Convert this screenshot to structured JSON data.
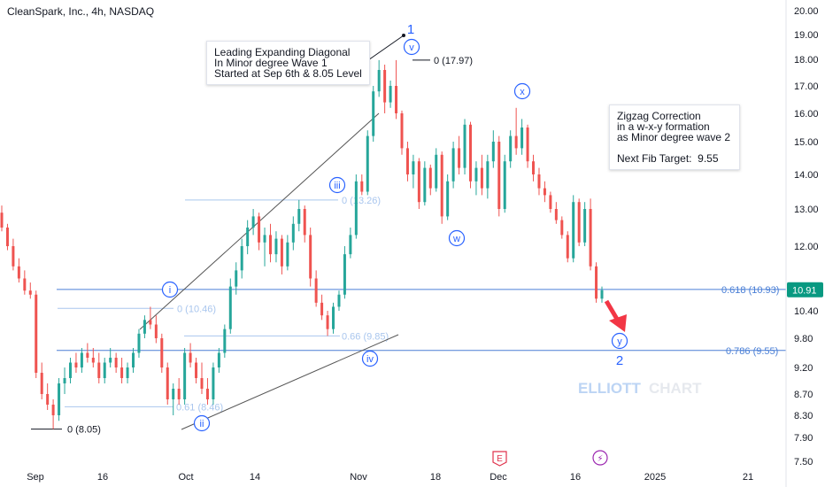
{
  "chart_data": {
    "type": "candlestick",
    "title": "CleanSpark, Inc., 4h, NASDAQ",
    "ylim": [
      7.5,
      20.0
    ],
    "y_ticks": [
      "20.00",
      "19.00",
      "18.00",
      "17.00",
      "16.00",
      "15.00",
      "14.00",
      "13.00",
      "12.00",
      "10.40",
      "9.80",
      "9.20",
      "8.70",
      "8.30",
      "7.90",
      "7.50"
    ],
    "x_ticks": [
      "Sep",
      "16",
      "Oct",
      "14",
      "Nov",
      "18",
      "Dec",
      "16",
      "2025",
      "21"
    ],
    "last_price": "10.91",
    "candles": [
      {
        "o": 12.9,
        "h": 13.1,
        "l": 12.4,
        "c": 12.5
      },
      {
        "o": 12.5,
        "h": 12.6,
        "l": 11.9,
        "c": 12.0
      },
      {
        "o": 12.0,
        "h": 12.2,
        "l": 11.4,
        "c": 11.5
      },
      {
        "o": 11.5,
        "h": 11.7,
        "l": 11.1,
        "c": 11.2
      },
      {
        "o": 11.2,
        "h": 11.4,
        "l": 10.8,
        "c": 10.9
      },
      {
        "o": 10.9,
        "h": 11.1,
        "l": 10.7,
        "c": 10.8
      },
      {
        "o": 10.8,
        "h": 10.9,
        "l": 9.0,
        "c": 9.1
      },
      {
        "o": 9.1,
        "h": 9.3,
        "l": 8.6,
        "c": 8.7
      },
      {
        "o": 8.7,
        "h": 8.9,
        "l": 8.4,
        "c": 8.5
      },
      {
        "o": 8.5,
        "h": 8.6,
        "l": 8.05,
        "c": 8.3
      },
      {
        "o": 8.3,
        "h": 9.0,
        "l": 8.2,
        "c": 8.9
      },
      {
        "o": 8.9,
        "h": 9.2,
        "l": 8.7,
        "c": 9.0
      },
      {
        "o": 9.0,
        "h": 9.4,
        "l": 8.9,
        "c": 9.3
      },
      {
        "o": 9.3,
        "h": 9.5,
        "l": 9.1,
        "c": 9.2
      },
      {
        "o": 9.2,
        "h": 9.6,
        "l": 9.1,
        "c": 9.5
      },
      {
        "o": 9.5,
        "h": 9.7,
        "l": 9.3,
        "c": 9.4
      },
      {
        "o": 9.4,
        "h": 9.6,
        "l": 9.2,
        "c": 9.3
      },
      {
        "o": 9.3,
        "h": 9.5,
        "l": 8.9,
        "c": 9.0
      },
      {
        "o": 9.0,
        "h": 9.4,
        "l": 8.9,
        "c": 9.3
      },
      {
        "o": 9.3,
        "h": 9.6,
        "l": 9.2,
        "c": 9.4
      },
      {
        "o": 9.4,
        "h": 9.5,
        "l": 9.1,
        "c": 9.2
      },
      {
        "o": 9.2,
        "h": 9.4,
        "l": 8.9,
        "c": 9.0
      },
      {
        "o": 9.0,
        "h": 9.3,
        "l": 8.9,
        "c": 9.2
      },
      {
        "o": 9.2,
        "h": 9.6,
        "l": 9.1,
        "c": 9.5
      },
      {
        "o": 9.5,
        "h": 10.0,
        "l": 9.4,
        "c": 9.9
      },
      {
        "o": 9.9,
        "h": 10.3,
        "l": 9.8,
        "c": 10.2
      },
      {
        "o": 10.2,
        "h": 10.5,
        "l": 10.0,
        "c": 10.1
      },
      {
        "o": 10.1,
        "h": 10.3,
        "l": 9.7,
        "c": 9.8
      },
      {
        "o": 9.8,
        "h": 9.9,
        "l": 9.1,
        "c": 9.2
      },
      {
        "o": 9.2,
        "h": 9.3,
        "l": 8.5,
        "c": 8.6
      },
      {
        "o": 8.6,
        "h": 8.9,
        "l": 8.3,
        "c": 8.8
      },
      {
        "o": 8.8,
        "h": 9.0,
        "l": 8.5,
        "c": 8.6
      },
      {
        "o": 8.6,
        "h": 9.6,
        "l": 8.5,
        "c": 9.5
      },
      {
        "o": 9.5,
        "h": 9.7,
        "l": 9.2,
        "c": 9.3
      },
      {
        "o": 9.3,
        "h": 9.4,
        "l": 8.9,
        "c": 9.0
      },
      {
        "o": 9.0,
        "h": 9.3,
        "l": 8.7,
        "c": 8.8
      },
      {
        "o": 8.8,
        "h": 9.0,
        "l": 8.5,
        "c": 8.6
      },
      {
        "o": 8.6,
        "h": 9.3,
        "l": 8.5,
        "c": 9.2
      },
      {
        "o": 9.2,
        "h": 9.6,
        "l": 9.1,
        "c": 9.5
      },
      {
        "o": 9.5,
        "h": 10.1,
        "l": 9.4,
        "c": 10.0
      },
      {
        "o": 10.0,
        "h": 11.2,
        "l": 9.9,
        "c": 11.0
      },
      {
        "o": 11.0,
        "h": 11.6,
        "l": 10.8,
        "c": 11.4
      },
      {
        "o": 11.4,
        "h": 12.2,
        "l": 11.2,
        "c": 12.0
      },
      {
        "o": 12.0,
        "h": 12.7,
        "l": 11.8,
        "c": 12.5
      },
      {
        "o": 12.5,
        "h": 13.0,
        "l": 12.3,
        "c": 12.8
      },
      {
        "o": 12.8,
        "h": 12.9,
        "l": 11.9,
        "c": 12.1
      },
      {
        "o": 12.1,
        "h": 12.5,
        "l": 11.5,
        "c": 12.3
      },
      {
        "o": 12.3,
        "h": 12.6,
        "l": 11.6,
        "c": 11.8
      },
      {
        "o": 11.8,
        "h": 12.4,
        "l": 11.6,
        "c": 12.2
      },
      {
        "o": 12.2,
        "h": 12.3,
        "l": 11.3,
        "c": 11.5
      },
      {
        "o": 11.5,
        "h": 12.3,
        "l": 11.4,
        "c": 12.1
      },
      {
        "o": 12.1,
        "h": 12.8,
        "l": 11.9,
        "c": 12.6
      },
      {
        "o": 12.6,
        "h": 13.26,
        "l": 12.4,
        "c": 13.0
      },
      {
        "o": 13.0,
        "h": 13.1,
        "l": 12.1,
        "c": 12.3
      },
      {
        "o": 12.3,
        "h": 12.5,
        "l": 11.0,
        "c": 11.2
      },
      {
        "o": 11.2,
        "h": 11.4,
        "l": 10.5,
        "c": 10.6
      },
      {
        "o": 10.6,
        "h": 10.8,
        "l": 10.2,
        "c": 10.3
      },
      {
        "o": 10.3,
        "h": 10.4,
        "l": 9.85,
        "c": 10.0
      },
      {
        "o": 10.0,
        "h": 10.6,
        "l": 9.9,
        "c": 10.5
      },
      {
        "o": 10.5,
        "h": 10.9,
        "l": 10.4,
        "c": 10.8
      },
      {
        "o": 10.8,
        "h": 12.0,
        "l": 10.7,
        "c": 11.8
      },
      {
        "o": 11.8,
        "h": 12.5,
        "l": 11.7,
        "c": 12.3
      },
      {
        "o": 12.3,
        "h": 14.0,
        "l": 12.2,
        "c": 13.8
      },
      {
        "o": 13.8,
        "h": 14.0,
        "l": 13.4,
        "c": 13.5
      },
      {
        "o": 13.5,
        "h": 15.4,
        "l": 13.4,
        "c": 15.2
      },
      {
        "o": 15.2,
        "h": 17.0,
        "l": 15.0,
        "c": 16.8
      },
      {
        "o": 16.8,
        "h": 17.97,
        "l": 16.6,
        "c": 17.6
      },
      {
        "o": 17.6,
        "h": 17.8,
        "l": 16.0,
        "c": 16.4
      },
      {
        "o": 16.4,
        "h": 17.2,
        "l": 16.2,
        "c": 17.0
      },
      {
        "o": 17.0,
        "h": 17.97,
        "l": 15.8,
        "c": 16.0
      },
      {
        "o": 16.0,
        "h": 16.1,
        "l": 14.6,
        "c": 14.8
      },
      {
        "o": 14.8,
        "h": 15.0,
        "l": 13.8,
        "c": 14.0
      },
      {
        "o": 14.0,
        "h": 14.6,
        "l": 13.6,
        "c": 14.4
      },
      {
        "o": 14.4,
        "h": 14.5,
        "l": 13.0,
        "c": 13.2
      },
      {
        "o": 13.2,
        "h": 14.4,
        "l": 13.1,
        "c": 14.2
      },
      {
        "o": 14.2,
        "h": 14.3,
        "l": 13.4,
        "c": 13.6
      },
      {
        "o": 13.6,
        "h": 14.8,
        "l": 13.5,
        "c": 14.6
      },
      {
        "o": 14.6,
        "h": 14.7,
        "l": 12.6,
        "c": 12.8
      },
      {
        "o": 12.8,
        "h": 14.0,
        "l": 12.7,
        "c": 13.8
      },
      {
        "o": 13.8,
        "h": 15.0,
        "l": 13.6,
        "c": 14.8
      },
      {
        "o": 14.8,
        "h": 15.2,
        "l": 14.0,
        "c": 14.2
      },
      {
        "o": 14.2,
        "h": 15.8,
        "l": 14.0,
        "c": 15.6
      },
      {
        "o": 15.6,
        "h": 15.7,
        "l": 13.6,
        "c": 13.8
      },
      {
        "o": 13.8,
        "h": 14.4,
        "l": 13.4,
        "c": 14.2
      },
      {
        "o": 14.2,
        "h": 14.6,
        "l": 13.4,
        "c": 13.6
      },
      {
        "o": 13.6,
        "h": 14.6,
        "l": 13.3,
        "c": 14.4
      },
      {
        "o": 14.4,
        "h": 15.4,
        "l": 14.2,
        "c": 15.0
      },
      {
        "o": 15.0,
        "h": 15.2,
        "l": 12.8,
        "c": 13.0
      },
      {
        "o": 13.0,
        "h": 14.6,
        "l": 12.9,
        "c": 14.4
      },
      {
        "o": 14.4,
        "h": 15.4,
        "l": 14.2,
        "c": 15.2
      },
      {
        "o": 15.2,
        "h": 16.2,
        "l": 14.6,
        "c": 14.8
      },
      {
        "o": 14.8,
        "h": 15.8,
        "l": 14.6,
        "c": 15.5
      },
      {
        "o": 15.5,
        "h": 15.6,
        "l": 14.2,
        "c": 14.4
      },
      {
        "o": 14.4,
        "h": 14.6,
        "l": 13.8,
        "c": 14.0
      },
      {
        "o": 14.0,
        "h": 14.2,
        "l": 13.4,
        "c": 13.6
      },
      {
        "o": 13.6,
        "h": 13.8,
        "l": 13.2,
        "c": 13.4
      },
      {
        "o": 13.4,
        "h": 13.5,
        "l": 12.9,
        "c": 13.0
      },
      {
        "o": 13.0,
        "h": 13.2,
        "l": 12.6,
        "c": 12.7
      },
      {
        "o": 12.7,
        "h": 12.8,
        "l": 12.2,
        "c": 12.3
      },
      {
        "o": 12.3,
        "h": 12.4,
        "l": 11.6,
        "c": 11.7
      },
      {
        "o": 11.7,
        "h": 13.4,
        "l": 11.6,
        "c": 13.2
      },
      {
        "o": 13.2,
        "h": 13.3,
        "l": 12.0,
        "c": 12.1
      },
      {
        "o": 12.1,
        "h": 13.2,
        "l": 12.0,
        "c": 13.0
      },
      {
        "o": 13.0,
        "h": 13.3,
        "l": 11.4,
        "c": 11.5
      },
      {
        "o": 11.5,
        "h": 11.6,
        "l": 10.6,
        "c": 10.7
      },
      {
        "o": 10.7,
        "h": 11.0,
        "l": 10.6,
        "c": 10.91
      }
    ],
    "fib_levels": [
      {
        "label": "0.618 (10.93)",
        "value": 10.93
      },
      {
        "label": "0.786 (9.55)",
        "value": 9.55
      },
      {
        "label": "0 (17.97)",
        "value": 17.97
      },
      {
        "label": "0 (13.26)",
        "value": 13.26
      },
      {
        "label": "0 (10.46)",
        "value": 10.46
      },
      {
        "label": "0.66 (9.85)",
        "value": 9.85
      },
      {
        "label": "0.61 (8.46)",
        "value": 8.46
      },
      {
        "label": "0 (8.05)",
        "value": 8.05
      }
    ],
    "wave_labels": [
      {
        "text": "1",
        "color": "#2962ff"
      },
      {
        "text": "v",
        "color": "#2962ff"
      },
      {
        "text": "i",
        "color": "#2962ff"
      },
      {
        "text": "iii",
        "color": "#2962ff"
      },
      {
        "text": "iv",
        "color": "#2962ff"
      },
      {
        "text": "ii",
        "color": "#2962ff"
      },
      {
        "text": "w",
        "color": "#2962ff"
      },
      {
        "text": "x",
        "color": "#2962ff"
      },
      {
        "text": "y",
        "color": "#2962ff"
      },
      {
        "text": "2",
        "color": "#2962ff"
      }
    ],
    "event_badges": [
      "E",
      "⚡"
    ],
    "colors": {
      "up": "#26a69a",
      "down": "#ef5350",
      "fib": "#4a7fd6",
      "price_label": "#089981"
    }
  },
  "annotations": {
    "diagonal_note": "Leading Expanding Diagonal\nIn Minor degree Wave 1\nStarted at Sep 6th & 8.05 Level",
    "zigzag_note": "Zigzag Correction\nin a w-x-y formation\nas Minor degree wave 2\n\nNext Fib Target:  9.55"
  },
  "watermark": {
    "part1": "ELLIOTT",
    "part2": "CHART"
  }
}
